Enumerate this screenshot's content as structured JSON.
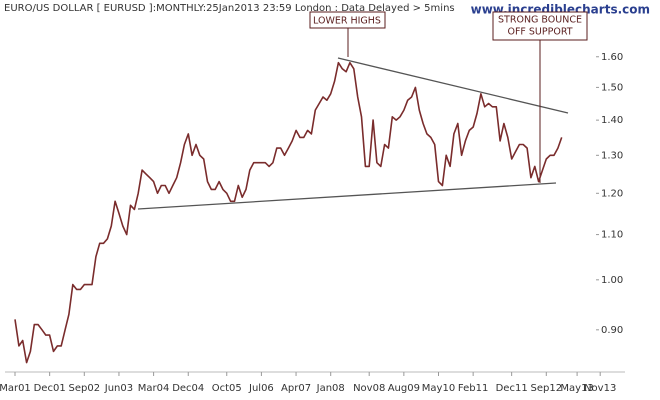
{
  "chart_data": {
    "type": "line",
    "title": "EURO/US DOLLAR [ EURUSD ]:MONTHLY:25Jan2013 23:59 London : Data Delayed > 5mins",
    "watermark": "www.incrediblecharts.com",
    "log_scale": true,
    "color": "#7a2c2c",
    "categories": [
      "Mar01",
      null,
      null,
      null,
      null,
      null,
      null,
      null,
      null,
      "Dec01",
      null,
      null,
      null,
      null,
      null,
      null,
      null,
      null,
      "Sep02",
      null,
      null,
      null,
      null,
      null,
      null,
      null,
      null,
      "Jun03",
      null,
      null,
      null,
      null,
      null,
      null,
      null,
      null,
      "Mar04",
      null,
      null,
      null,
      null,
      null,
      null,
      null,
      null,
      "Dec04",
      null,
      null,
      null,
      null,
      null,
      null,
      null,
      null,
      null,
      "Oct05",
      null,
      null,
      null,
      null,
      null,
      null,
      null,
      null,
      "Jul06",
      null,
      null,
      null,
      null,
      null,
      null,
      null,
      null,
      "Apr07",
      null,
      null,
      null,
      null,
      null,
      null,
      null,
      null,
      "Jan08",
      null,
      null,
      null,
      null,
      null,
      null,
      null,
      null,
      null,
      "Nov08",
      null,
      null,
      null,
      null,
      null,
      null,
      null,
      null,
      "Aug09",
      null,
      null,
      null,
      null,
      null,
      null,
      null,
      null,
      "May10",
      null,
      null,
      null,
      null,
      null,
      null,
      null,
      null,
      "Feb11",
      null,
      null,
      null,
      null,
      null,
      null,
      null,
      null,
      null,
      "Dec11",
      null,
      null,
      null,
      null,
      null,
      null,
      null,
      null,
      "Sep12",
      null,
      null,
      null,
      null,
      null,
      null,
      null,
      "May13",
      null,
      null,
      null,
      null,
      null,
      "Nov13"
    ],
    "values": [
      0.92,
      0.87,
      0.88,
      0.84,
      0.86,
      0.91,
      0.91,
      0.9,
      0.89,
      0.89,
      0.86,
      0.87,
      0.87,
      0.9,
      0.93,
      0.99,
      0.98,
      0.98,
      0.99,
      0.99,
      0.99,
      1.05,
      1.08,
      1.08,
      1.09,
      1.12,
      1.18,
      1.15,
      1.12,
      1.1,
      1.17,
      1.16,
      1.2,
      1.26,
      1.25,
      1.24,
      1.23,
      1.2,
      1.22,
      1.22,
      1.2,
      1.22,
      1.24,
      1.28,
      1.33,
      1.36,
      1.3,
      1.33,
      1.3,
      1.29,
      1.23,
      1.21,
      1.21,
      1.23,
      1.21,
      1.2,
      1.18,
      1.18,
      1.22,
      1.19,
      1.21,
      1.26,
      1.28,
      1.28,
      1.28,
      1.28,
      1.27,
      1.28,
      1.32,
      1.32,
      1.3,
      1.32,
      1.34,
      1.37,
      1.35,
      1.35,
      1.37,
      1.36,
      1.43,
      1.45,
      1.47,
      1.46,
      1.48,
      1.52,
      1.58,
      1.56,
      1.55,
      1.58,
      1.56,
      1.47,
      1.41,
      1.27,
      1.27,
      1.4,
      1.28,
      1.27,
      1.33,
      1.32,
      1.41,
      1.4,
      1.41,
      1.43,
      1.46,
      1.47,
      1.5,
      1.43,
      1.39,
      1.36,
      1.35,
      1.33,
      1.23,
      1.22,
      1.3,
      1.27,
      1.36,
      1.39,
      1.3,
      1.34,
      1.37,
      1.38,
      1.42,
      1.48,
      1.44,
      1.45,
      1.44,
      1.44,
      1.34,
      1.39,
      1.35,
      1.29,
      1.31,
      1.33,
      1.33,
      1.32,
      1.24,
      1.27,
      1.23,
      1.26,
      1.29,
      1.3,
      1.3,
      1.32,
      1.35,
      null,
      null,
      null,
      null,
      null,
      null,
      null,
      null,
      null,
      null
    ],
    "ylim": [
      0.82,
      1.7
    ],
    "yticks": [
      {
        "value": 0.9,
        "label": "0.90"
      },
      {
        "value": 1.0,
        "label": "1.00"
      },
      {
        "value": 1.1,
        "label": "1.10"
      },
      {
        "value": 1.2,
        "label": "1.20"
      },
      {
        "value": 1.3,
        "label": "1.30"
      },
      {
        "value": 1.4,
        "label": "1.40"
      },
      {
        "value": 1.5,
        "label": "1.50"
      },
      {
        "value": 1.6,
        "label": "1.60"
      }
    ],
    "annotations": [
      {
        "lines": [
          "LOWER HIGHS"
        ]
      },
      {
        "lines": [
          "STRONG BOUNCE",
          "OFF SUPPORT"
        ]
      }
    ]
  }
}
